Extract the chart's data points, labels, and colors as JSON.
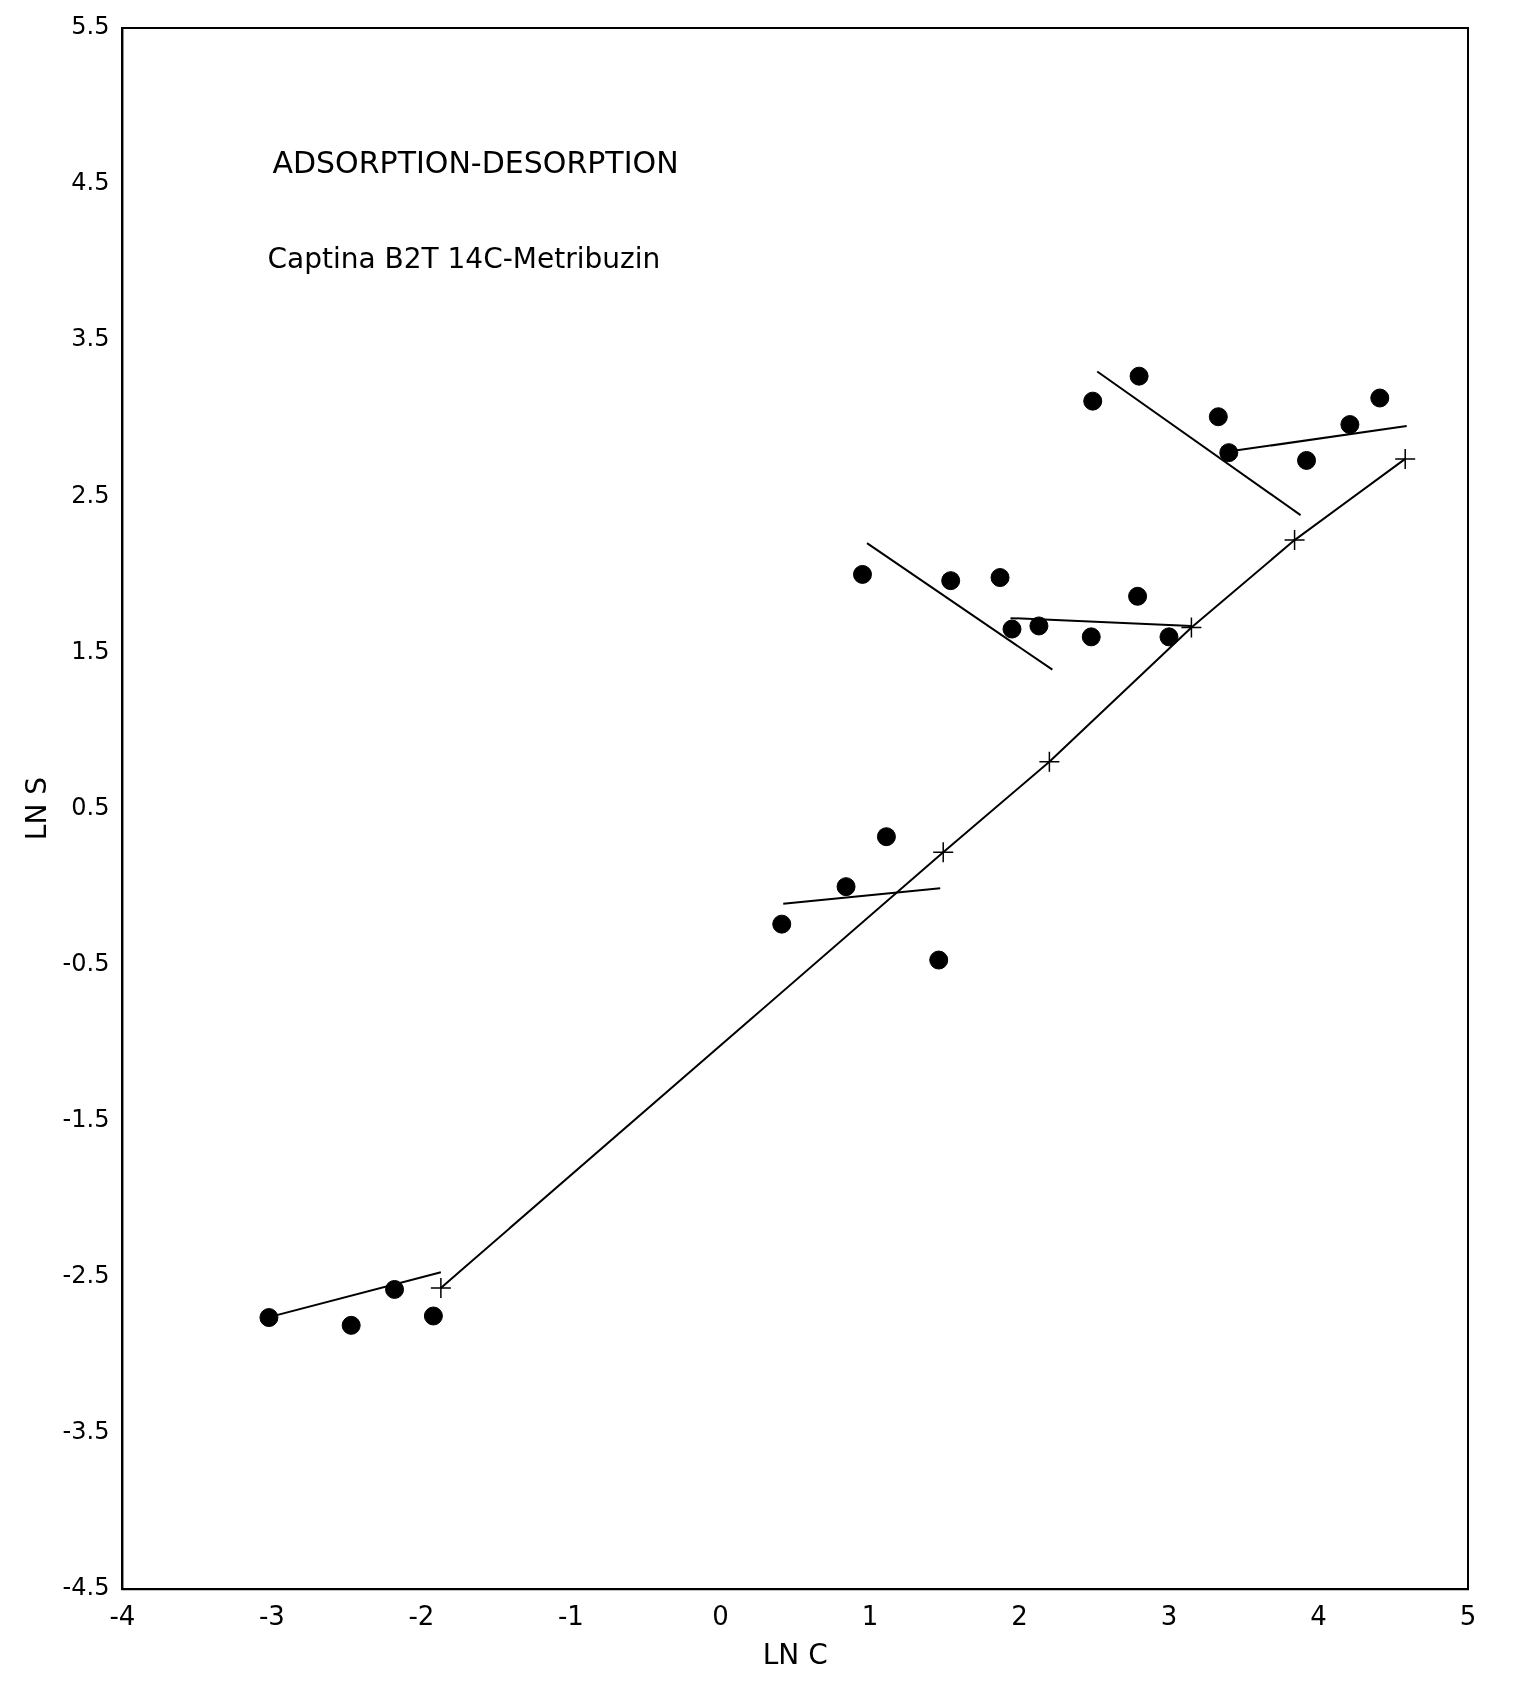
{
  "chart_data": {
    "type": "scatter",
    "title": "ADSORPTION-DESORPTION",
    "subtitle": "Captina B2T 14C-Metribuzin",
    "xlabel": "LN C",
    "ylabel": "LN S",
    "xlim": [
      -4,
      5
    ],
    "xticks": [
      -4,
      -3,
      -2,
      -1,
      0,
      1,
      2,
      3,
      4,
      5
    ],
    "ylim": [
      -4.5,
      5.5
    ],
    "yticks": [
      -4.5,
      -3.5,
      -2.5,
      -1.5,
      -0.5,
      0.5,
      1.5,
      2.5,
      3.5,
      4.5,
      5.5
    ],
    "grid": false,
    "legend": false,
    "series": [
      {
        "type": "scatter",
        "marker": "circle",
        "color": "#000000",
        "x": [
          -3.02,
          -2.47,
          -2.18,
          -1.92,
          0.41,
          0.84,
          1.11,
          1.46,
          0.95,
          1.54,
          1.87,
          1.95,
          2.13,
          2.48,
          2.79,
          3.0,
          2.49,
          2.8,
          3.33,
          3.4,
          3.92,
          4.21,
          4.41
        ],
        "values": [
          -2.76,
          -2.81,
          -2.58,
          -2.75,
          -0.24,
          0.0,
          0.32,
          -0.47,
          2.0,
          1.96,
          1.98,
          1.65,
          1.67,
          1.6,
          1.86,
          1.6,
          3.11,
          3.27,
          3.01,
          2.78,
          2.73,
          2.96,
          3.13
        ]
      },
      {
        "type": "line",
        "marker": "cross",
        "line_style": "solid",
        "color": "#000000",
        "x": [
          -1.87,
          1.49,
          2.2,
          3.15,
          3.84,
          4.58
        ],
        "values": [
          -2.57,
          0.22,
          0.8,
          1.66,
          2.22,
          2.74
        ]
      },
      {
        "type": "line",
        "marker": "none",
        "line_style": "solid",
        "color": "#000000",
        "x": [
          -3.07,
          -1.87
        ],
        "values": [
          -2.77,
          -2.47
        ]
      },
      {
        "type": "line",
        "marker": "none",
        "line_style": "solid",
        "color": "#000000",
        "x": [
          0.42,
          1.47
        ],
        "values": [
          -0.11,
          -0.01
        ]
      },
      {
        "type": "line",
        "marker": "none",
        "line_style": "solid",
        "color": "#000000",
        "x": [
          0.98,
          2.22
        ],
        "values": [
          2.2,
          1.39
        ]
      },
      {
        "type": "line",
        "marker": "none",
        "line_style": "solid",
        "color": "#000000",
        "x": [
          1.94,
          3.15
        ],
        "values": [
          1.72,
          1.67
        ]
      },
      {
        "type": "line",
        "marker": "none",
        "line_style": "solid",
        "color": "#000000",
        "x": [
          2.52,
          3.88
        ],
        "values": [
          3.3,
          2.38
        ]
      },
      {
        "type": "line",
        "marker": "none",
        "line_style": "solid",
        "color": "#000000",
        "x": [
          3.42,
          4.59
        ],
        "values": [
          2.79,
          2.95
        ]
      }
    ]
  }
}
